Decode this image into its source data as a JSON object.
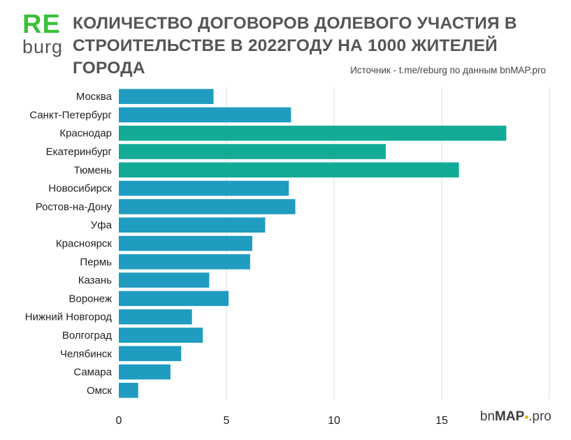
{
  "logo": {
    "re": "RE",
    "burg": "burg"
  },
  "header": {
    "title": "КОЛИЧЕСТВО ДОГОВОРОВ ДОЛЕВОГО УЧАСТИЯ В СТРОИТЕЛЬСТВЕ В 2022ГОДУ НА 1000 ЖИТЕЛЕЙ ГОРОДА",
    "source": "Источник - t.me/reburg  по данным bnMAP.pro"
  },
  "brand": {
    "prefix": "bn",
    "bold": "MAP",
    "suffix": ".pro"
  },
  "colors": {
    "blue": "#1f9cbf",
    "teal": "#12ab96",
    "grid": "#dcdcdc"
  },
  "chart_data": {
    "type": "bar",
    "orientation": "horizontal",
    "title": "КОЛИЧЕСТВО ДОГОВОРОВ ДОЛЕВОГО УЧАСТИЯ В СТРОИТЕЛЬСТВЕ В 2022ГОДУ НА 1000 ЖИТЕЛЕЙ ГОРОДА",
    "categories": [
      "Москва",
      "Санкт-Петербург",
      "Краснодар",
      "Екатеринбург",
      "Тюмень",
      "Новосибирск",
      "Ростов-на-Дону",
      "Уфа",
      "Красноярск",
      "Пермь",
      "Казань",
      "Воронеж",
      "Нижний Новгород",
      "Волгоград",
      "Челябинск",
      "Самара",
      "Омск"
    ],
    "values": [
      4.4,
      8.0,
      18.0,
      12.4,
      15.8,
      7.9,
      8.2,
      6.8,
      6.2,
      6.1,
      4.2,
      5.1,
      3.4,
      3.9,
      2.9,
      2.4,
      0.9
    ],
    "highlight": [
      false,
      false,
      true,
      true,
      true,
      false,
      false,
      false,
      false,
      false,
      false,
      false,
      false,
      false,
      false,
      false,
      false
    ],
    "xlim": [
      0,
      20
    ],
    "xticks": [
      0,
      5,
      10,
      15
    ],
    "grid": true,
    "xlabel": "",
    "ylabel": ""
  }
}
